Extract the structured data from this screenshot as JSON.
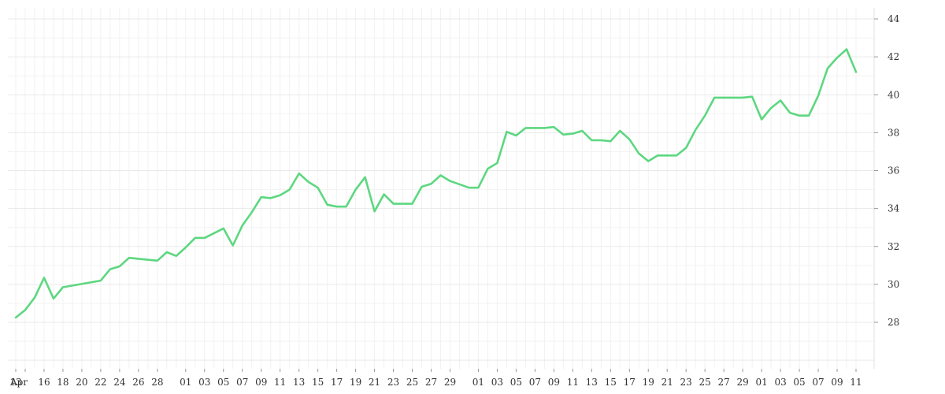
{
  "chart_data": {
    "type": "line",
    "title": "",
    "xlabel": "",
    "ylabel": "",
    "x_tick_labels": [
      "13",
      "Apr",
      "16",
      "18",
      "20",
      "22",
      "24",
      "26",
      "28",
      "01",
      "03",
      "05",
      "07",
      "09",
      "11",
      "13",
      "15",
      "17",
      "19",
      "21",
      "23",
      "25",
      "27",
      "29",
      "01",
      "03",
      "05",
      "07",
      "09",
      "11",
      "13",
      "15",
      "17",
      "19",
      "21",
      "23",
      "25",
      "27",
      "29",
      "01",
      "03",
      "05",
      "07",
      "09",
      "11"
    ],
    "y_ticks": [
      28,
      30,
      32,
      34,
      36,
      38,
      40,
      42,
      44
    ],
    "ylim": [
      26,
      44.5
    ],
    "grid": true,
    "legend": "none",
    "line_color": "#5dd780",
    "series": [
      {
        "x": [
          "2023-04-13",
          "2023-04-14",
          "2023-04-15",
          "2023-04-16",
          "2023-04-17",
          "2023-04-18",
          "2023-04-22",
          "2023-04-23",
          "2023-04-24",
          "2023-04-25",
          "2023-04-26",
          "2023-04-28",
          "2023-04-29",
          "2023-04-30",
          "2023-05-01",
          "2023-05-02",
          "2023-05-03",
          "2023-05-05",
          "2023-05-06",
          "2023-05-07",
          "2023-05-08",
          "2023-05-09",
          "2023-05-10",
          "2023-05-11",
          "2023-05-12",
          "2023-05-13",
          "2023-05-14",
          "2023-05-15",
          "2023-05-16",
          "2023-05-17",
          "2023-05-18",
          "2023-05-19",
          "2023-05-20",
          "2023-05-21",
          "2023-05-22",
          "2023-05-23",
          "2023-05-25",
          "2023-05-26",
          "2023-05-27",
          "2023-05-28",
          "2023-05-29",
          "2023-05-31",
          "2023-06-01",
          "2023-06-02",
          "2023-06-03",
          "2023-06-04",
          "2023-06-05",
          "2023-06-06",
          "2023-06-08",
          "2023-06-09",
          "2023-06-10",
          "2023-06-11",
          "2023-06-12",
          "2023-06-13",
          "2023-06-14",
          "2023-06-15",
          "2023-06-16",
          "2023-06-17",
          "2023-06-18",
          "2023-06-19",
          "2023-06-20",
          "2023-06-22",
          "2023-06-23",
          "2023-06-24",
          "2023-06-25",
          "2023-06-26",
          "2023-06-29",
          "2023-06-30",
          "2023-07-01",
          "2023-07-02",
          "2023-07-03",
          "2023-07-04",
          "2023-07-05",
          "2023-07-06",
          "2023-07-07",
          "2023-07-08",
          "2023-07-09",
          "2023-07-10",
          "2023-07-11"
        ],
        "values": [
          28.25,
          28.65,
          29.3,
          30.35,
          29.25,
          29.85,
          30.2,
          30.8,
          30.95,
          31.4,
          31.35,
          31.25,
          31.7,
          31.5,
          31.95,
          32.45,
          32.45,
          32.95,
          32.05,
          33.1,
          33.8,
          34.6,
          34.55,
          34.7,
          35.0,
          35.85,
          35.4,
          35.1,
          34.2,
          34.1,
          34.1,
          35.0,
          35.65,
          33.85,
          34.75,
          34.25,
          34.25,
          35.15,
          35.3,
          35.75,
          35.45,
          35.1,
          35.1,
          36.1,
          36.4,
          38.05,
          37.85,
          38.25,
          38.25,
          38.3,
          37.9,
          37.95,
          38.1,
          37.6,
          37.6,
          37.55,
          38.1,
          37.65,
          36.9,
          36.5,
          36.8,
          36.8,
          37.2,
          38.15,
          38.9,
          39.85,
          39.85,
          39.9,
          38.7,
          39.3,
          39.7,
          39.05,
          38.9,
          38.9,
          39.95,
          41.4,
          41.95,
          42.4,
          41.2
        ]
      }
    ]
  }
}
